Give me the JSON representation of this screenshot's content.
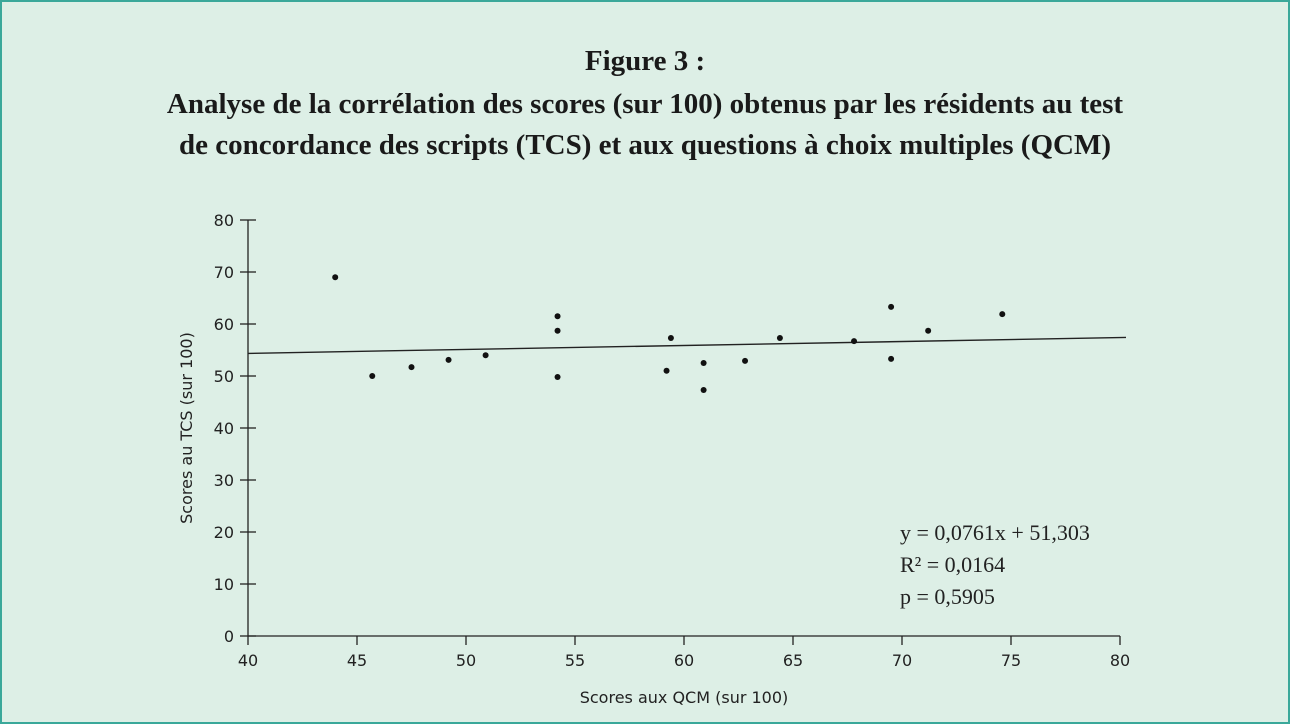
{
  "chart_data": {
    "type": "scatter",
    "title": "Figure 3 :",
    "subtitle": [
      "Analyse de la corrélation des scores (sur 100) obtenus par les résidents au test",
      "de concordance des scripts (TCS) et aux questions à choix multiples (QCM)"
    ],
    "x_label": "Scores aux QCM (sur 100)",
    "y_label": "Scores au TCS (sur 100)",
    "x": [
      44.0,
      45.7,
      47.5,
      49.2,
      50.9,
      54.2,
      54.2,
      54.2,
      59.2,
      59.4,
      60.9,
      60.9,
      62.8,
      64.4,
      67.8,
      69.5,
      69.5,
      71.2,
      74.6
    ],
    "values": [
      69.0,
      50.0,
      51.7,
      53.1,
      54.0,
      61.5,
      58.7,
      49.8,
      51.0,
      57.3,
      52.5,
      47.3,
      52.9,
      57.3,
      56.7,
      63.3,
      53.3,
      58.7,
      61.9
    ],
    "color": "#111111",
    "xlim": [
      40,
      80
    ],
    "xticks": [
      40,
      45,
      50,
      55,
      60,
      65,
      70,
      75,
      80
    ],
    "ylim": [
      0,
      80
    ],
    "yticks": [
      0,
      10,
      20,
      30,
      40,
      50,
      60,
      70,
      80
    ],
    "grid": false,
    "annotations": [
      "y = 0,0761x + 51,303",
      "R² = 0,0164",
      "p = 0,5905"
    ]
  }
}
